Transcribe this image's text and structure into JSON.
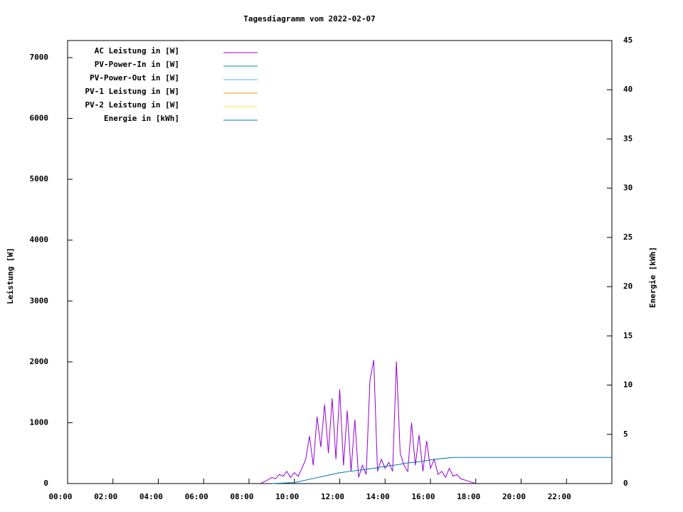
{
  "chart_data": {
    "type": "line",
    "title": "Tagesdiagramm vom 2022-02-07",
    "ylabel": "Leistung [W]",
    "y2label": "Energie [kWh]",
    "xlim": [
      "00:00",
      "24:00"
    ],
    "xticks": [
      "00:00",
      "02:00",
      "04:00",
      "06:00",
      "08:00",
      "10:00",
      "12:00",
      "14:00",
      "16:00",
      "18:00",
      "20:00",
      "22:00"
    ],
    "ylim": [
      0,
      7280
    ],
    "yticks": [
      0,
      1000,
      2000,
      3000,
      4000,
      5000,
      6000,
      7000
    ],
    "y2lim": [
      0,
      45
    ],
    "y2ticks": [
      0,
      5,
      10,
      15,
      20,
      25,
      30,
      35,
      40,
      45
    ],
    "legend": "top-left",
    "series": [
      {
        "name": "AC Leistung in [W]",
        "color": "#9400d3",
        "x": [
          "08:30",
          "08:40",
          "08:50",
          "09:00",
          "09:10",
          "09:20",
          "09:30",
          "09:40",
          "09:50",
          "10:00",
          "10:10",
          "10:20",
          "10:30",
          "10:40",
          "10:50",
          "11:00",
          "11:10",
          "11:20",
          "11:30",
          "11:40",
          "11:50",
          "12:00",
          "12:10",
          "12:20",
          "12:30",
          "12:40",
          "12:50",
          "13:00",
          "13:10",
          "13:20",
          "13:30",
          "13:40",
          "13:50",
          "14:00",
          "14:10",
          "14:20",
          "14:30",
          "14:40",
          "14:50",
          "15:00",
          "15:10",
          "15:20",
          "15:30",
          "15:40",
          "15:50",
          "16:00",
          "16:10",
          "16:20",
          "16:30",
          "16:40",
          "16:50",
          "17:00",
          "17:10",
          "17:20",
          "17:30",
          "17:40",
          "17:50",
          "18:00"
        ],
        "values": [
          0,
          30,
          60,
          100,
          80,
          150,
          120,
          200,
          100,
          180,
          120,
          250,
          400,
          780,
          300,
          1100,
          600,
          1300,
          500,
          1400,
          400,
          1550,
          300,
          1200,
          200,
          1050,
          100,
          300,
          150,
          1700,
          2030,
          200,
          400,
          250,
          350,
          200,
          2010,
          500,
          300,
          200,
          1000,
          300,
          800,
          200,
          700,
          250,
          400,
          150,
          200,
          100,
          250,
          120,
          150,
          80,
          60,
          40,
          20,
          0
        ]
      },
      {
        "name": "PV-Power-In in [W]",
        "color": "#009e73",
        "x": [],
        "values": []
      },
      {
        "name": "PV-Power-Out in [W]",
        "color": "#56b4e9",
        "x": [],
        "values": []
      },
      {
        "name": "PV-1 Leistung in [W]",
        "color": "#e69f00",
        "x": [],
        "values": []
      },
      {
        "name": "PV-2 Leistung in [W]",
        "color": "#f0e442",
        "x": [],
        "values": []
      },
      {
        "name": "Energie in [kWh]",
        "color": "#0072b2",
        "axis": "y2",
        "x": [
          "09:00",
          "10:00",
          "11:00",
          "11:30",
          "12:00",
          "12:30",
          "13:00",
          "13:30",
          "14:00",
          "14:30",
          "15:00",
          "15:30",
          "16:00",
          "16:30",
          "17:00",
          "18:00",
          "20:00",
          "22:00",
          "24:00"
        ],
        "values": [
          0,
          0.1,
          0.6,
          0.85,
          1.1,
          1.25,
          1.4,
          1.55,
          1.75,
          1.9,
          2.1,
          2.2,
          2.4,
          2.55,
          2.65,
          2.65,
          2.65,
          2.65,
          2.65
        ]
      }
    ]
  }
}
